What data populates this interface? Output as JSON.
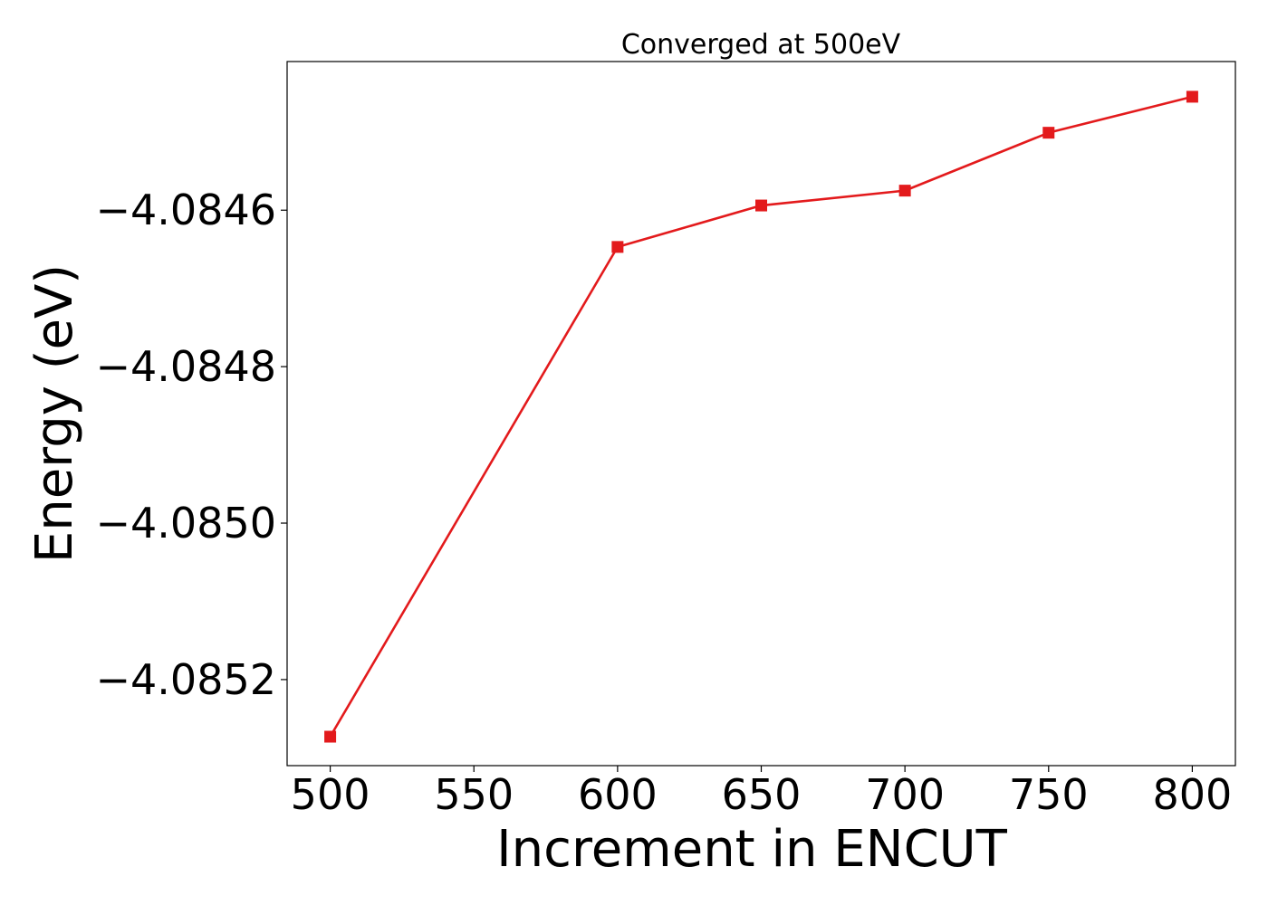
{
  "chart_data": {
    "type": "line",
    "title": "Converged at 500eV",
    "xlabel": "Increment in ENCUT",
    "ylabel": "Energy (eV)",
    "xlim": [
      485,
      815
    ],
    "ylim": [
      -4.08531,
      -4.08441
    ],
    "x_ticks": [
      500,
      550,
      600,
      650,
      700,
      750,
      800
    ],
    "x_tick_labels": [
      "500",
      "550",
      "600",
      "650",
      "700",
      "750",
      "800"
    ],
    "y_ticks": [
      -4.0846,
      -4.0848,
      -4.085,
      -4.0852
    ],
    "y_tick_labels": [
      "−4.0846",
      "−4.0848",
      "−4.0850",
      "−4.0852"
    ],
    "grid": false,
    "series": [
      {
        "marker": "square",
        "color": "#e31a1c",
        "x": [
          500,
          600,
          650,
          700,
          750,
          800
        ],
        "y": [
          -4.085273,
          -4.084647,
          -4.084594,
          -4.084575,
          -4.084501,
          -4.084455
        ]
      }
    ]
  }
}
